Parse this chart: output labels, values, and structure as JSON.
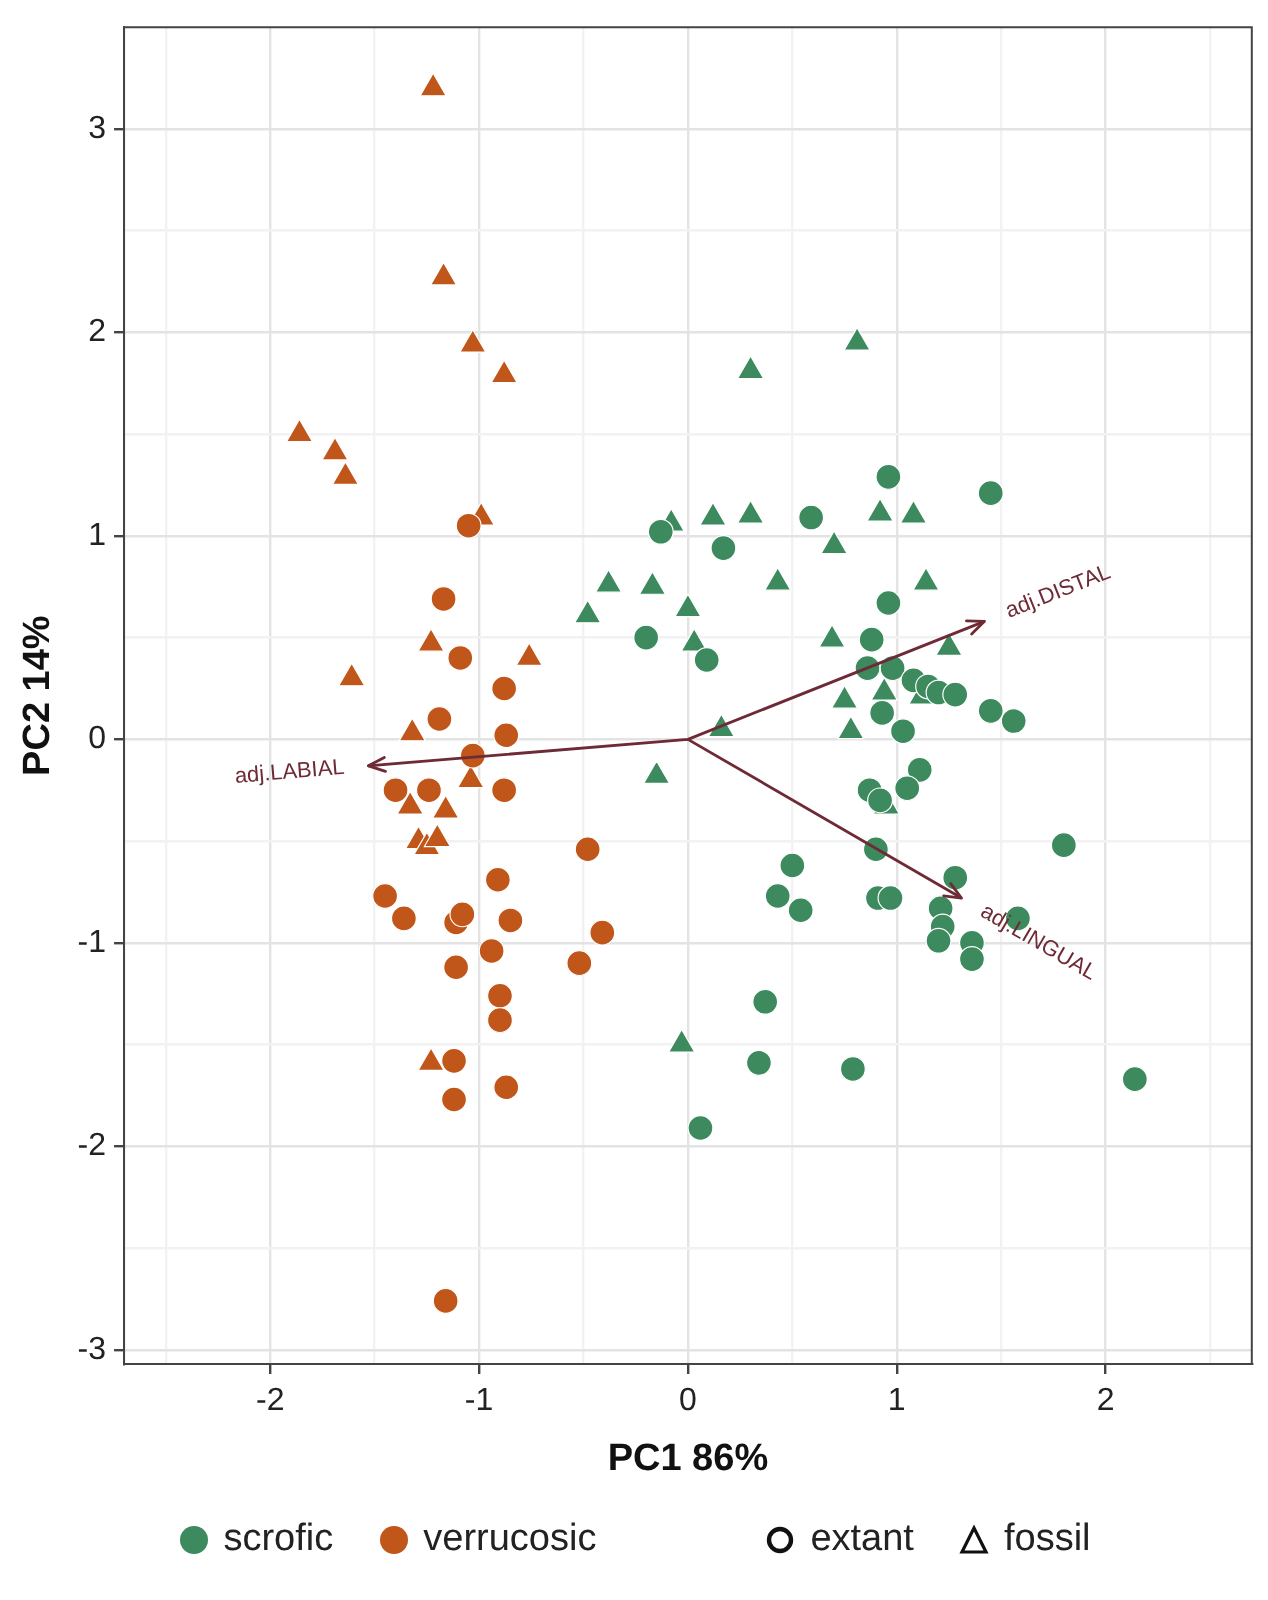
{
  "chart_data": {
    "type": "scatter",
    "xlabel": "PC1 86%",
    "ylabel": "PC2 14%",
    "xlim": [
      -2.7,
      2.7
    ],
    "ylim": [
      -3.07,
      3.5
    ],
    "xticks": [
      {
        "value": -2.5,
        "label": null
      },
      -2,
      {
        "value": -1.5,
        "label": null
      },
      -1,
      {
        "value": -0.5,
        "label": null
      },
      0,
      {
        "value": 0.5,
        "label": null
      },
      1,
      {
        "value": 1.5,
        "label": null
      },
      2,
      {
        "value": 2.5,
        "label": null
      }
    ],
    "yticks": [
      -3,
      {
        "value": -2.5,
        "label": null
      },
      -2,
      {
        "value": -1.5,
        "label": null
      },
      -1,
      {
        "value": -0.5,
        "label": null
      },
      0,
      {
        "value": 0.5,
        "label": null
      },
      1,
      {
        "value": 1.5,
        "label": null
      },
      2,
      {
        "value": 2.5,
        "label": null
      },
      3
    ],
    "grid": true,
    "legend": "bottom",
    "series": [
      {
        "name": "scrofic",
        "color": "#3d8a5e",
        "marker": "circle",
        "x": [
          -0.13,
          -0.2,
          0.09,
          0.96,
          1.45,
          0.59,
          0.17,
          0.96,
          0.88,
          0.86,
          0.98,
          1.08,
          1.15,
          1.2,
          1.28,
          0.93,
          1.45,
          1.56,
          1.03,
          1.11,
          0.87,
          0.92,
          1.05,
          0.9,
          0.5,
          1.8,
          1.28,
          0.43,
          0.54,
          0.91,
          0.97,
          1.21,
          1.22,
          1.2,
          1.58,
          1.36,
          1.36,
          0.37,
          0.34,
          0.79,
          2.14,
          0.06
        ],
        "values": [
          1.02,
          0.5,
          0.39,
          1.29,
          1.21,
          1.09,
          0.94,
          0.67,
          0.49,
          0.35,
          0.35,
          0.29,
          0.26,
          0.23,
          0.22,
          0.13,
          0.14,
          0.09,
          0.04,
          -0.15,
          -0.25,
          -0.3,
          -0.24,
          -0.54,
          -0.62,
          -0.52,
          -0.68,
          -0.77,
          -0.84,
          -0.78,
          -0.78,
          -0.83,
          -0.92,
          -0.99,
          -0.88,
          -1.0,
          -1.08,
          -1.29,
          -1.59,
          -1.62,
          -1.67,
          -1.91
        ]
      },
      {
        "color": "#3d8a5e",
        "marker": "triangle",
        "x": [
          0.81,
          0.3,
          -0.08,
          0.12,
          0.3,
          0.92,
          1.08,
          0.7,
          -0.38,
          -0.17,
          0.43,
          1.14,
          -0.48,
          0.0,
          0.03,
          0.69,
          1.25,
          1.12,
          0.75,
          0.94,
          0.78,
          0.16,
          -0.15,
          0.95,
          -0.03
        ],
        "values": [
          1.95,
          1.81,
          1.06,
          1.09,
          1.1,
          1.11,
          1.1,
          0.95,
          0.76,
          0.75,
          0.77,
          0.77,
          0.61,
          0.64,
          0.47,
          0.49,
          0.45,
          0.21,
          0.19,
          0.23,
          0.04,
          0.05,
          -0.18,
          -0.33,
          -1.5
        ]
      },
      {
        "name": "verrucosic",
        "color": "#c0561a",
        "marker": "circle",
        "x": [
          -1.05,
          -1.17,
          -1.09,
          -0.88,
          -1.19,
          -0.87,
          -1.03,
          -0.88,
          -1.4,
          -1.24,
          -0.48,
          -0.91,
          -1.45,
          -1.36,
          -1.11,
          -1.08,
          -0.85,
          -0.41,
          -0.94,
          -1.11,
          -0.52,
          -0.9,
          -0.9,
          -1.12,
          -0.87,
          -1.12,
          -1.16
        ],
        "values": [
          1.05,
          0.69,
          0.4,
          0.25,
          0.1,
          0.02,
          -0.08,
          -0.25,
          -0.25,
          -0.25,
          -0.54,
          -0.69,
          -0.77,
          -0.88,
          -0.9,
          -0.86,
          -0.89,
          -0.95,
          -1.04,
          -1.12,
          -1.1,
          -1.26,
          -1.38,
          -1.58,
          -1.71,
          -1.77,
          -2.76
        ]
      },
      {
        "color": "#c0561a",
        "marker": "triangle",
        "x": [
          -1.22,
          -1.17,
          -1.03,
          -0.88,
          -1.86,
          -1.69,
          -1.64,
          -0.99,
          -1.23,
          -0.76,
          -1.61,
          -1.32,
          -1.04,
          -1.33,
          -1.16,
          -1.29,
          -1.25,
          -1.2,
          -1.23
        ],
        "values": [
          3.2,
          2.27,
          1.94,
          1.79,
          1.5,
          1.41,
          1.29,
          1.09,
          0.47,
          0.4,
          0.3,
          0.03,
          -0.2,
          -0.33,
          -0.35,
          -0.5,
          -0.53,
          -0.49,
          -1.59
        ]
      },
      {
        "type": "line",
        "color": "#6e2a35",
        "marker": "none",
        "x": [
          0,
          -1.53,
          null,
          0,
          1.42,
          null,
          0,
          1.31
        ],
        "values": [
          0,
          -0.13,
          null,
          0,
          0.58,
          null,
          0,
          -0.78
        ]
      }
    ],
    "annotations": [
      {
        "text": "adj.LABIAL",
        "x": -1.53,
        "y": -0.13
      },
      {
        "text": "adj.DISTAL",
        "x": 1.42,
        "y": 0.58
      },
      {
        "text": "adj.LINGUAL",
        "x": 1.31,
        "y": -0.78
      },
      "extant",
      "fossil"
    ]
  }
}
